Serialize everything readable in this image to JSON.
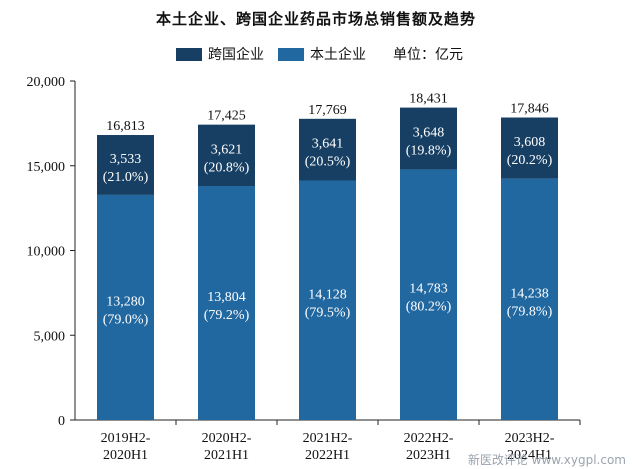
{
  "chart_data": {
    "type": "bar",
    "stacked": true,
    "title": "本土企业、跨国企业药品市场总销售额及趋势",
    "unit_label": "单位：亿元",
    "categories": [
      "2019H2-\n2020H1",
      "2020H2-\n2021H1",
      "2021H2-\n2022H1",
      "2022H2-\n2023H1",
      "2023H2-\n2024H1"
    ],
    "series": [
      {
        "name": "本土企业",
        "color": "#2167a0",
        "values": [
          13280,
          13804,
          14128,
          14783,
          14238
        ],
        "labels": [
          "13,280",
          "13,804",
          "14,128",
          "14,783",
          "14,238"
        ],
        "shares": [
          "(79.0%)",
          "(79.2%)",
          "(79.5%)",
          "(80.2%)",
          "(79.8%)"
        ]
      },
      {
        "name": "跨国企业",
        "color": "#173f63",
        "values": [
          3533,
          3621,
          3641,
          3648,
          3608
        ],
        "labels": [
          "3,533",
          "3,621",
          "3,641",
          "3,648",
          "3,608"
        ],
        "shares": [
          "(21.0%)",
          "(20.8%)",
          "(20.5%)",
          "(19.8%)",
          "(20.2%)"
        ]
      }
    ],
    "totals": [
      "16,813",
      "17,425",
      "17,769",
      "18,431",
      "17,846"
    ],
    "yticks": [
      "0",
      "5,000",
      "10,000",
      "15,000",
      "20,000"
    ],
    "ylim": [
      0,
      20000
    ],
    "legend_position": "top"
  },
  "watermark": "新医改评论 www.xygpl.com"
}
